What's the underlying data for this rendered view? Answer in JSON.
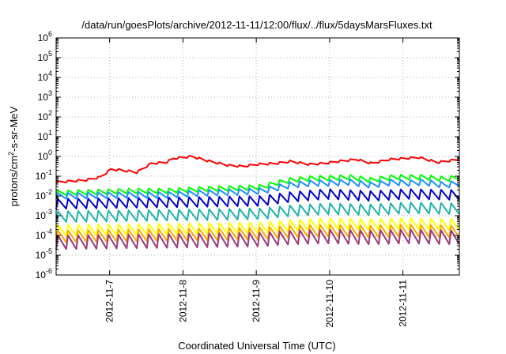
{
  "chart_data": {
    "type": "line",
    "title": "/data/run/goesPlots/archive/2012-11-11/12:00/flux/../flux/5daysMarsFluxes.txt",
    "xlabel": "Coordinated Universal Time (UTC)",
    "ylabel_parts": {
      "pre": "protons/cm",
      "sup": "2",
      "post": "-s-sr-MeV"
    },
    "scale": {
      "y": "log"
    },
    "grid": true,
    "xlim": [
      0,
      5.5
    ],
    "ylim_exp": [
      -6,
      6
    ],
    "x_ticks": [
      {
        "label": "2012-11-7",
        "pos": 0.73
      },
      {
        "label": "2012-11-8",
        "pos": 1.73
      },
      {
        "label": "2012-11-9",
        "pos": 2.73
      },
      {
        "label": "2012-11-10",
        "pos": 3.73
      },
      {
        "label": "2012-11-11",
        "pos": 4.73
      }
    ],
    "y_ticks": [
      {
        "exp": -6,
        "label": "10",
        "sup": "-6"
      },
      {
        "exp": -5,
        "label": "10",
        "sup": "-5"
      },
      {
        "exp": -4,
        "label": "10",
        "sup": "-4"
      },
      {
        "exp": -3,
        "label": "10",
        "sup": "-3"
      },
      {
        "exp": -2,
        "label": "10",
        "sup": "-2"
      },
      {
        "exp": -1,
        "label": "10",
        "sup": "-1"
      },
      {
        "exp": 0,
        "label": "10",
        "sup": "0"
      },
      {
        "exp": 1,
        "label": "10",
        "sup": "1"
      },
      {
        "exp": 2,
        "label": "10",
        "sup": "2"
      },
      {
        "exp": 3,
        "label": "10",
        "sup": "3"
      },
      {
        "exp": 4,
        "label": "10",
        "sup": "4"
      },
      {
        "exp": 5,
        "label": "10",
        "sup": "5"
      },
      {
        "exp": 6,
        "label": "10",
        "sup": "6"
      }
    ],
    "sawtooth_period_days": 0.1375,
    "series": [
      {
        "color": "#ff0000",
        "x": [
          0,
          0.2,
          0.4,
          0.6,
          0.75,
          0.9,
          1.1,
          1.3,
          1.5,
          1.6,
          1.85,
          2.1,
          2.35,
          2.55,
          2.75,
          3.0,
          3.2,
          3.45,
          3.65,
          3.85,
          4.1,
          4.3,
          4.55,
          4.75,
          4.95,
          5.2,
          5.5
        ],
        "log10": [
          -1.3,
          -1.25,
          -1.2,
          -1.05,
          -0.65,
          -0.7,
          -0.8,
          -0.35,
          -0.3,
          -0.1,
          0.0,
          -0.25,
          -0.45,
          -0.5,
          -0.4,
          -0.35,
          -0.25,
          -0.4,
          -0.35,
          -0.25,
          -0.15,
          -0.35,
          -0.15,
          -0.1,
          -0.05,
          -0.3,
          -0.15
        ],
        "amp": 0.1
      },
      {
        "color": "#00ff00",
        "x": [
          0,
          1.0,
          1.5,
          2.0,
          2.5,
          2.8,
          3.0,
          3.2,
          3.5,
          3.7,
          4.0,
          4.3,
          4.6,
          4.8,
          5.0,
          5.3,
          5.5
        ],
        "log10": [
          -1.85,
          -1.75,
          -1.75,
          -1.65,
          -1.6,
          -1.55,
          -1.35,
          -1.2,
          -1.1,
          -1.1,
          -1.05,
          -1.2,
          -1.05,
          -1.05,
          -1.05,
          -1.15,
          -1.05
        ],
        "amp": 0.25
      },
      {
        "color": "#1e90ff",
        "x": [
          0,
          1.0,
          1.5,
          2.0,
          2.5,
          2.8,
          3.0,
          3.2,
          3.5,
          3.7,
          4.0,
          4.3,
          4.6,
          4.8,
          5.0,
          5.3,
          5.5
        ],
        "log10": [
          -2.0,
          -1.95,
          -1.95,
          -1.85,
          -1.8,
          -1.75,
          -1.6,
          -1.45,
          -1.35,
          -1.35,
          -1.3,
          -1.45,
          -1.3,
          -1.35,
          -1.3,
          -1.45,
          -1.35
        ],
        "amp": 0.3
      },
      {
        "color": "#0000cd",
        "x": [
          0,
          1.0,
          2.0,
          2.8,
          3.2,
          3.7,
          4.3,
          4.8,
          5.5
        ],
        "log10": [
          -2.4,
          -2.35,
          -2.3,
          -2.25,
          -2.05,
          -1.9,
          -2.0,
          -1.9,
          -1.95
        ],
        "amp": 0.5
      },
      {
        "color": "#20b2aa",
        "x": [
          0,
          1.0,
          2.0,
          2.8,
          3.2,
          3.7,
          4.3,
          4.8,
          5.5
        ],
        "log10": [
          -3.05,
          -3.0,
          -2.95,
          -2.9,
          -2.75,
          -2.65,
          -2.7,
          -2.6,
          -2.65
        ],
        "amp": 0.55
      },
      {
        "color": "#ffff00",
        "x": [
          0,
          1.0,
          2.0,
          2.8,
          3.2,
          3.7,
          4.3,
          4.8,
          5.5
        ],
        "log10": [
          -3.75,
          -3.7,
          -3.65,
          -3.6,
          -3.5,
          -3.4,
          -3.45,
          -3.4,
          -3.45
        ],
        "amp": 0.55
      },
      {
        "color": "#ffa500",
        "x": [
          0,
          1.0,
          2.0,
          2.8,
          3.2,
          3.7,
          4.3,
          4.8,
          5.5
        ],
        "log10": [
          -4.05,
          -4.0,
          -3.95,
          -3.9,
          -3.8,
          -3.75,
          -3.8,
          -3.75,
          -3.8
        ],
        "amp": 0.6
      },
      {
        "color": "#9b3a7a",
        "x": [
          0,
          1.0,
          2.0,
          2.8,
          3.2,
          3.7,
          4.3,
          4.8,
          5.5
        ],
        "log10": [
          -4.35,
          -4.3,
          -4.25,
          -4.2,
          -4.1,
          -4.05,
          -4.1,
          -4.05,
          -4.1
        ],
        "amp": 0.7
      }
    ]
  }
}
